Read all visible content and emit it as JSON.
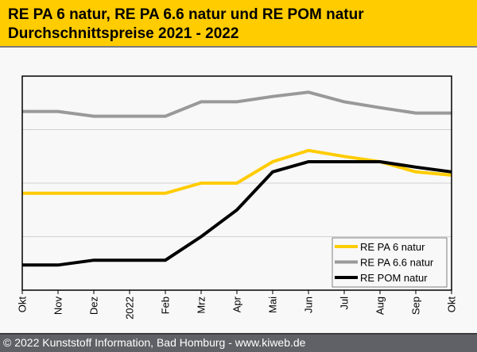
{
  "header": {
    "title_line1": "RE PA 6 natur, RE PA 6.6 natur und RE POM natur",
    "title_line2": "Durchschnittspreise 2021 - 2022"
  },
  "footer": {
    "copyright": "© 2022 Kunststoff Information, Bad Homburg - www.kiweb.de"
  },
  "colors": {
    "header_bg": "#ffcc00",
    "footer_bg": "#606166",
    "pa6": "#ffcc00",
    "pa66": "#999999",
    "pom": "#000000",
    "grid": "#d0d0d0"
  },
  "chart_data": {
    "type": "line",
    "title": "RE PA 6 natur, RE PA 6.6 natur und RE POM natur Durchschnittspreise 2021 - 2022",
    "xlabel": "",
    "ylabel": "",
    "y_tick_labels_shown": false,
    "y_units": "relative index (gridline units, no axis labels shown)",
    "ylim": [
      0,
      4
    ],
    "grid": true,
    "gridlines": [
      1,
      2,
      3
    ],
    "legend_position": "bottom-right",
    "categories": [
      "Okt",
      "Nov",
      "Dez",
      "2022",
      "Feb",
      "Mrz",
      "Apr",
      "Mai",
      "Jun",
      "Jul",
      "Aug",
      "Sep",
      "Okt"
    ],
    "series": [
      {
        "name": "RE PA 6 natur",
        "color": "#ffcc00",
        "values": [
          1.81,
          1.81,
          1.81,
          1.81,
          1.81,
          2.0,
          2.0,
          2.4,
          2.61,
          2.5,
          2.4,
          2.21,
          2.15
        ]
      },
      {
        "name": "RE PA 6.6 natur",
        "color": "#999999",
        "values": [
          3.34,
          3.34,
          3.25,
          3.25,
          3.25,
          3.52,
          3.52,
          3.62,
          3.7,
          3.52,
          3.41,
          3.31,
          3.31
        ]
      },
      {
        "name": "RE POM natur",
        "color": "#000000",
        "values": [
          0.47,
          0.47,
          0.56,
          0.56,
          0.56,
          1.0,
          1.5,
          2.21,
          2.4,
          2.4,
          2.4,
          2.3,
          2.21
        ]
      }
    ]
  }
}
